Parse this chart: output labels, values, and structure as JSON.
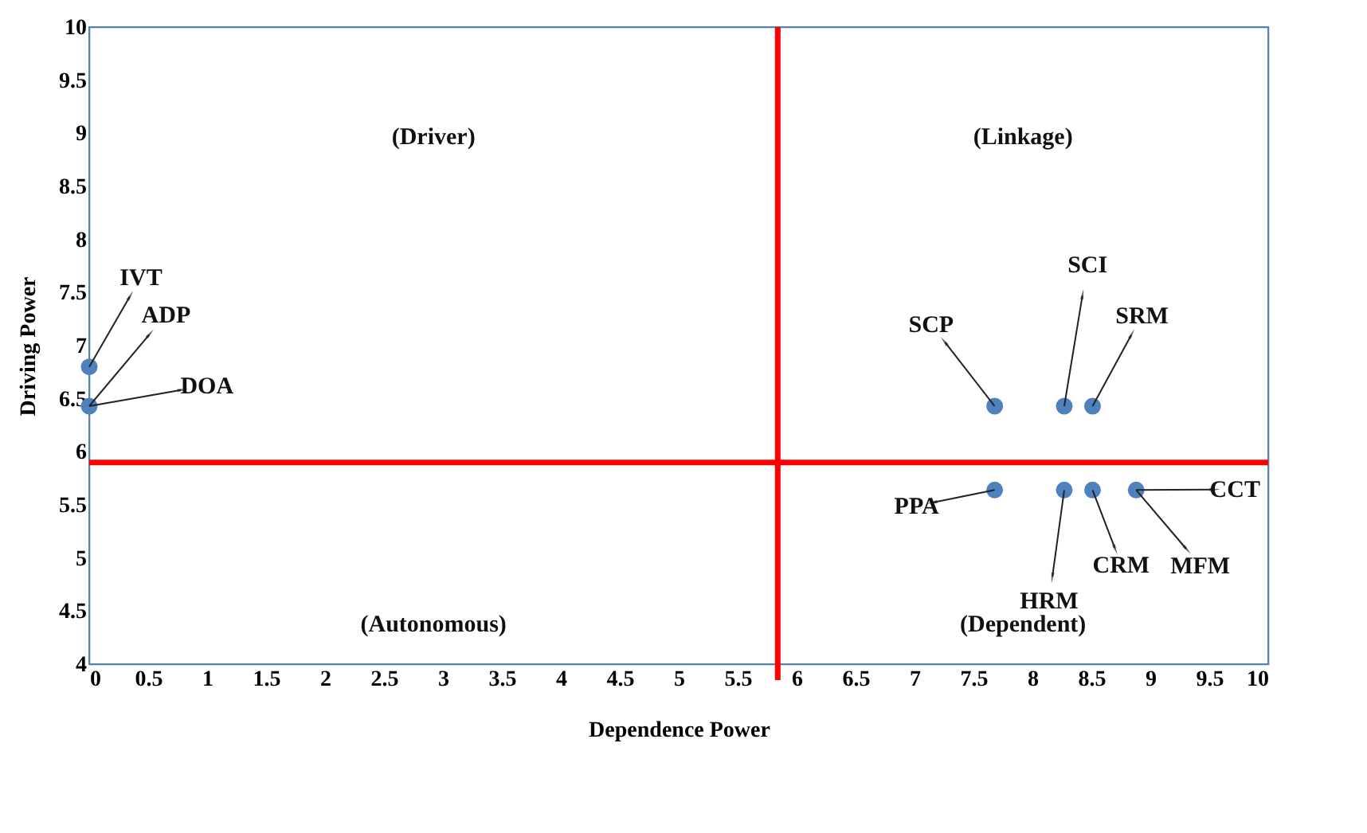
{
  "chart_data": {
    "type": "scatter",
    "xlabel": "Dependence Power",
    "ylabel": "Driving Power",
    "series": [
      {
        "color": "#4f81bd",
        "x": [
          0,
          0,
          7.68,
          8.27,
          8.51,
          7.68,
          8.27,
          8.51,
          8.88
        ],
        "values": [
          6.8,
          6.43,
          6.43,
          6.43,
          6.43,
          5.64,
          5.64,
          5.64,
          5.64
        ]
      }
    ],
    "marker": "circle",
    "xlim": [
      0,
      10
    ],
    "xticks": [
      0,
      0.5,
      1,
      1.5,
      2,
      2.5,
      3,
      3.5,
      4,
      4.5,
      5,
      5.5,
      6,
      6.5,
      7,
      7.5,
      8,
      8.5,
      9,
      9.5,
      10
    ],
    "ylim": [
      4,
      10
    ],
    "yticks": [
      4,
      4.5,
      5,
      5.5,
      6,
      6.5,
      7,
      7.5,
      8,
      8.5,
      9,
      9.5,
      10
    ],
    "grid": false,
    "ref_lines": [
      {
        "axis": "x",
        "value": 5.84,
        "color": "#ff0000"
      },
      {
        "axis": "y",
        "value": 5.9,
        "color": "#ff0000"
      }
    ],
    "annotations": [
      {
        "text": "IVT",
        "x": 0,
        "y": 6.8
      },
      {
        "text": "ADP",
        "x": 0,
        "y": 6.43
      },
      {
        "text": "DOA",
        "x": 0,
        "y": 6.43
      },
      {
        "text": "SCP",
        "x": 7.68,
        "y": 6.43
      },
      {
        "text": "SCI",
        "x": 8.27,
        "y": 6.43
      },
      {
        "text": "SRM",
        "x": 8.51,
        "y": 6.43
      },
      {
        "text": "PPA",
        "x": 7.68,
        "y": 5.64
      },
      {
        "text": "HRM",
        "x": 8.27,
        "y": 5.64
      },
      {
        "text": "CCT",
        "x": 8.88,
        "y": 5.64
      },
      {
        "text": "MFM",
        "x": 8.88,
        "y": 5.64
      },
      {
        "text": "CRM",
        "x": 8.51,
        "y": 5.64
      },
      "(Driver)",
      "(Linkage)",
      "(Autonomous)",
      "(Dependent)"
    ]
  }
}
